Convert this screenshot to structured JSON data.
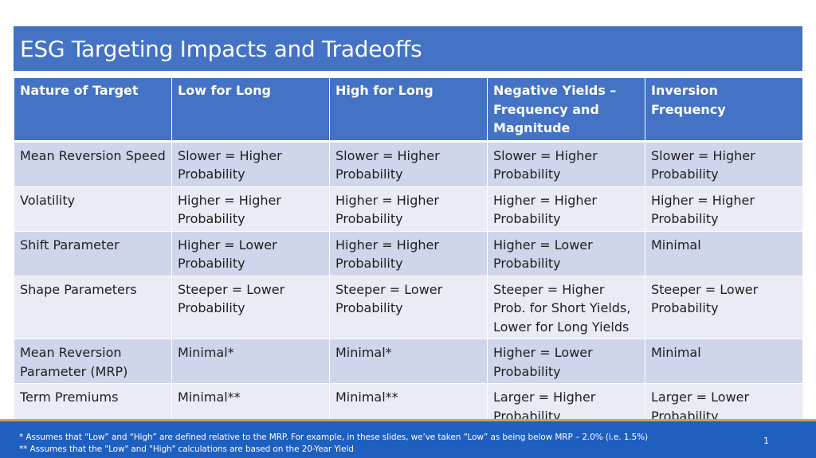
{
  "slide": {
    "title": "ESG Targeting Impacts and Tradeoffs",
    "page_number": "1"
  },
  "table": {
    "headers": [
      "Nature of Target",
      "Low for Long",
      "High for Long",
      "Negative Yields – Frequency and Magnitude",
      "Inversion Frequency"
    ],
    "rows": [
      [
        "Mean Reversion Speed",
        "Slower = Higher Probability",
        "Slower = Higher Probability",
        "Slower = Higher Probability",
        "Slower = Higher Probability"
      ],
      [
        "Volatility",
        "Higher = Higher Probability",
        "Higher = Higher Probability",
        "Higher = Higher Probability",
        "Higher = Higher Probability"
      ],
      [
        "Shift Parameter",
        "Higher = Lower Probability",
        "Higher = Higher Probability",
        "Higher = Lower Probability",
        "Minimal"
      ],
      [
        "Shape Parameters",
        "Steeper = Lower Probability",
        "Steeper = Lower Probability",
        "Steeper = Higher Prob. for Short Yields, Lower for Long Yields",
        "Steeper = Lower Probability"
      ],
      [
        "Mean Reversion Parameter (MRP)",
        "Minimal*",
        "Minimal*",
        "Higher = Lower Probability",
        "Minimal"
      ],
      [
        "Term Premiums",
        "Minimal**",
        "Minimal**",
        "Larger = Higher Probability",
        "Larger = Lower Probability"
      ]
    ]
  },
  "footer": {
    "note1": "* Assumes that “Low” and “High” are defined relative to the MRP.  For example, in these slides, we’ve taken “Low” as being below MRP – 2.0% (i.e. 1.5%)",
    "note2": "** Assumes that the \"Low\" and \"High\" calculations are based on the 20-Year Yield"
  },
  "colors": {
    "title_bar": "#4472c4",
    "header_row": "#4472c4",
    "row_dark": "#cfd5ea",
    "row_light": "#e9ebf5",
    "footer": "#1f5fbf",
    "footer_accent": "#c9a45c"
  }
}
